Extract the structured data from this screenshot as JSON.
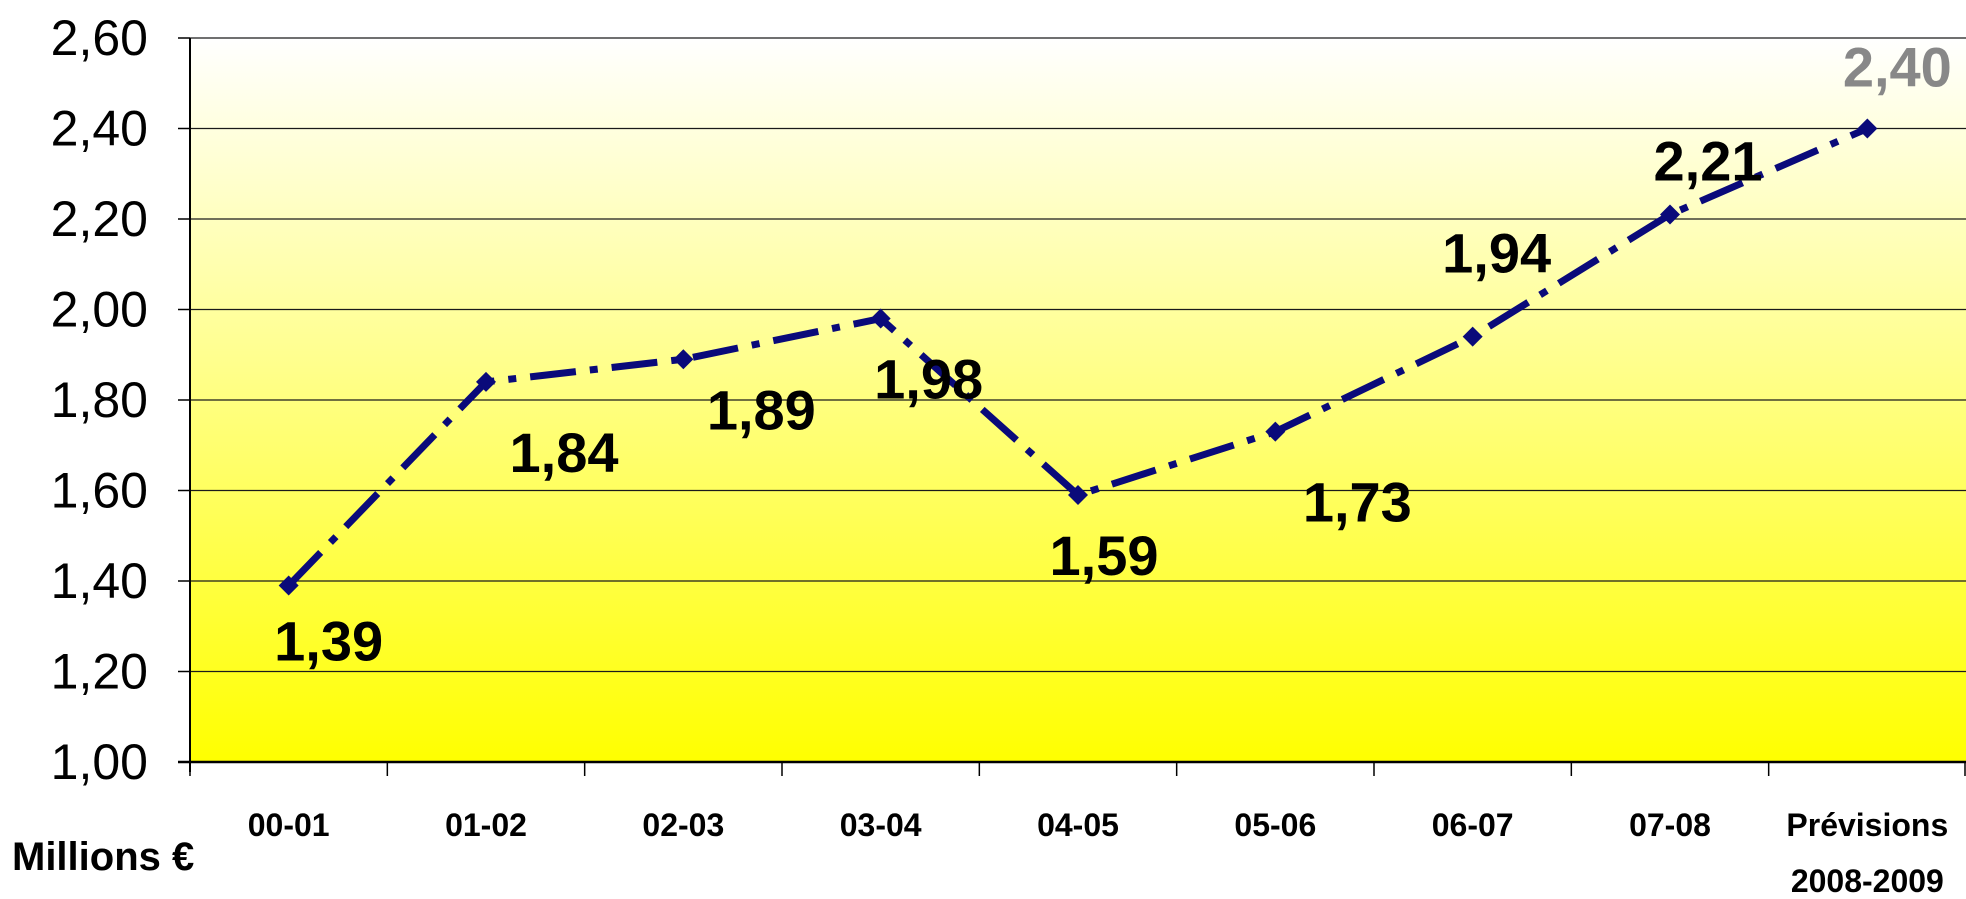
{
  "chart_data": {
    "type": "line",
    "categories": [
      "00-01",
      "01-02",
      "02-03",
      "03-04",
      "04-05",
      "05-06",
      "06-07",
      "07-08",
      "Prévisions|2008-2009"
    ],
    "values": [
      1.39,
      1.84,
      1.89,
      1.98,
      1.59,
      1.73,
      1.94,
      2.21,
      2.4
    ],
    "value_labels": [
      "1,39",
      "1,84",
      "1,89",
      "1,98",
      "1,59",
      "1,73",
      "1,94",
      "2,21",
      "2,40"
    ],
    "yticks": [
      1.0,
      1.2,
      1.4,
      1.6,
      1.8,
      2.0,
      2.2,
      2.4,
      2.6
    ],
    "ytick_labels": [
      "1,00",
      "1,20",
      "1,40",
      "1,60",
      "1,80",
      "2,00",
      "2,20",
      "2,40",
      "2,60"
    ],
    "ylim": [
      1.0,
      2.6
    ],
    "unit_label": "Millions €",
    "grid": true,
    "line_color": "#0a0a7a",
    "forecast_label_color": "#888888",
    "background_gradient": [
      "#ffffff",
      "#ffff00"
    ]
  }
}
